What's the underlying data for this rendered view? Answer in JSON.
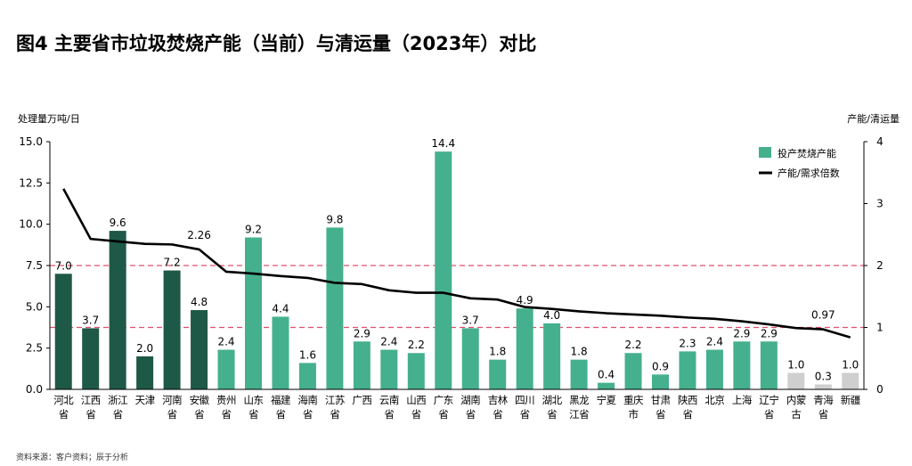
{
  "title": "图4 主要省市垃圾焚烧产能（当前）与清运量（2023年）对比",
  "source": "资料来源：客户资料；辰于分析",
  "colors": {
    "dark_green": "#1e5846",
    "teal": "#45b08e",
    "gray": "#cfcfcf",
    "line": "#000000",
    "ref_line": "#e0506a"
  },
  "chart_data": {
    "type": "bar",
    "ylabel_left": "处理量万吨/日",
    "ylabel_right": "产能/清运量",
    "ylim_left": [
      0,
      15
    ],
    "ylim_right": [
      0,
      4
    ],
    "yticks_left": [
      "0.0",
      "2.5",
      "5.0",
      "7.5",
      "10.0",
      "12.5",
      "15.0"
    ],
    "yticks_right": [
      "0",
      "1",
      "2",
      "3",
      "4"
    ],
    "reference_lines_right": [
      2,
      1
    ],
    "categories": [
      [
        "河北",
        "省"
      ],
      [
        "江西",
        "省"
      ],
      [
        "浙江",
        "省"
      ],
      [
        "天津"
      ],
      [
        "河南",
        "省"
      ],
      [
        "安徽",
        "省"
      ],
      [
        "贵州",
        "省"
      ],
      [
        "山东",
        "省"
      ],
      [
        "福建",
        "省"
      ],
      [
        "海南",
        "省"
      ],
      [
        "江苏",
        "省"
      ],
      [
        "广西"
      ],
      [
        "云南",
        "省"
      ],
      [
        "山西",
        "省"
      ],
      [
        "广东",
        "省"
      ],
      [
        "湖南",
        "省"
      ],
      [
        "吉林",
        "省"
      ],
      [
        "四川",
        "省"
      ],
      [
        "湖北",
        "省"
      ],
      [
        "黑龙",
        "江省"
      ],
      [
        "宁夏"
      ],
      [
        "重庆",
        "市"
      ],
      [
        "甘肃",
        "省"
      ],
      [
        "陕西",
        "省"
      ],
      [
        "北京"
      ],
      [
        "上海"
      ],
      [
        "辽宁",
        "省"
      ],
      [
        "内蒙",
        "古"
      ],
      [
        "青海",
        "省"
      ],
      [
        "新疆"
      ]
    ],
    "series": [
      {
        "name": "投产焚烧产能",
        "type": "bar",
        "values": [
          7.0,
          3.7,
          9.6,
          2.0,
          7.2,
          4.8,
          2.4,
          9.2,
          4.4,
          1.6,
          9.8,
          2.9,
          2.4,
          2.2,
          14.4,
          3.7,
          1.8,
          4.9,
          4.0,
          1.8,
          0.4,
          2.2,
          0.9,
          2.3,
          2.4,
          2.9,
          2.9,
          1.0,
          0.3,
          1.0
        ],
        "labels": [
          "7.0",
          "3.7",
          "9.6",
          "2.0",
          "7.2",
          "4.8",
          "2.4",
          "9.2",
          "4.4",
          "1.6",
          "9.8",
          "2.9",
          "2.4",
          "2.2",
          "14.4",
          "3.7",
          "1.8",
          "4.9",
          "4.0",
          "1.8",
          "0.4",
          "2.2",
          "0.9",
          "2.3",
          "2.4",
          "2.9",
          "2.9",
          "1.0",
          "0.3",
          "1.0"
        ],
        "color_groups": [
          "dark_green",
          "dark_green",
          "dark_green",
          "dark_green",
          "dark_green",
          "dark_green",
          "teal",
          "teal",
          "teal",
          "teal",
          "teal",
          "teal",
          "teal",
          "teal",
          "teal",
          "teal",
          "teal",
          "teal",
          "teal",
          "teal",
          "teal",
          "teal",
          "teal",
          "teal",
          "teal",
          "teal",
          "teal",
          "gray",
          "gray",
          "gray"
        ]
      },
      {
        "name": "产能/需求倍数",
        "type": "line",
        "axis": "right",
        "values": [
          3.24,
          2.43,
          2.39,
          2.35,
          2.34,
          2.26,
          1.9,
          1.87,
          1.83,
          1.8,
          1.72,
          1.7,
          1.6,
          1.56,
          1.56,
          1.47,
          1.45,
          1.33,
          1.3,
          1.26,
          1.23,
          1.21,
          1.19,
          1.16,
          1.14,
          1.1,
          1.05,
          0.99,
          0.97,
          0.84
        ],
        "annotations": [
          {
            "index": 5,
            "label": "2.26"
          },
          {
            "index": 28,
            "label": "0.97"
          }
        ]
      }
    ],
    "legend": [
      "投产焚烧产能",
      "产能/需求倍数"
    ],
    "legend_position": "top-right"
  }
}
